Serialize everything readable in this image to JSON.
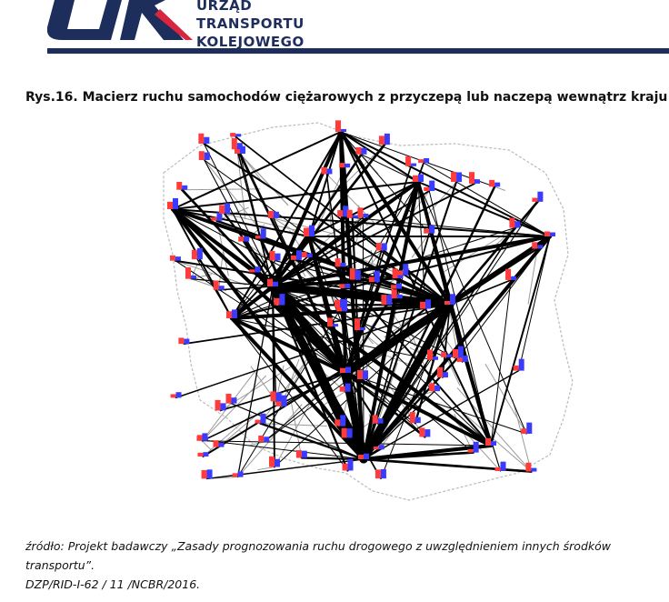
{
  "header": {
    "org_lines": [
      "URZĄD",
      "TRANSPORTU",
      "KOLEJOWEGO"
    ],
    "brand_colors": {
      "navy": "#1d2d5c",
      "red": "#d7263d"
    }
  },
  "figure": {
    "title": "Rys.16.  Macierz ruchu samochodów ciężarowych z przyczepą lub naczepą wewnątrz kraju",
    "map": {
      "legend_colors": {
        "flows": "#000000",
        "bar_out": "#ff3b3b",
        "bar_in": "#3b3bff",
        "roads": "#9a9a9a"
      }
    },
    "source_lines": [
      "źródło: Projekt badawczy „Zasady prognozowania ruchu drogowego z uwzględnieniem innych środków transportu”.",
      "DZP/RID-I-62 / 11 /NCBR/2016."
    ]
  }
}
